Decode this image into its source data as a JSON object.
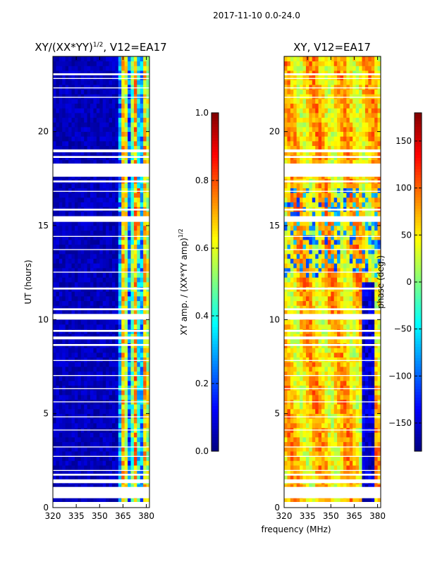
{
  "suptitle": "2017-11-10 0.0-24.0",
  "shared": {
    "xlabel": "frequency (MHz)",
    "ylabel": "UT (hours)"
  },
  "chart_data": [
    {
      "type": "heatmap",
      "title": "XY/(XX*YY)",
      "title_sup": "1/2",
      "title_suffix": ", V12=EA17",
      "xlim": [
        320,
        382
      ],
      "ylim": [
        0,
        24
      ],
      "xticks": [
        320,
        335,
        350,
        365,
        380
      ],
      "yticks": [
        0,
        5,
        10,
        15,
        20
      ],
      "value_description": "normalized XY amplitude: near 0 below ~362 MHz, ~0.3-0.8 in 362-382 MHz band",
      "colorbar": {
        "label": "XY amp. / (XX*YY amp)",
        "label_sup": "1/2",
        "range": [
          0.0,
          1.0
        ],
        "ticks": [
          "0.0",
          "0.2",
          "0.4",
          "0.6",
          "0.8",
          "1.0"
        ],
        "tick_values": [
          0.0,
          0.2,
          0.4,
          0.6,
          0.8,
          1.0
        ],
        "colormap": "jet"
      }
    },
    {
      "type": "heatmap",
      "title": "XY, V12=EA17",
      "xlim": [
        320,
        382
      ],
      "ylim": [
        0,
        24
      ],
      "xticks": [
        320,
        335,
        350,
        365,
        380
      ],
      "yticks": [
        0,
        5,
        10,
        15,
        20
      ],
      "value_description": "XY phase in degrees, mostly 0-100 deg; ~ -150 deg near 370-378 MHz",
      "colorbar": {
        "label": "phase (deg.)",
        "range": [
          -180,
          180
        ],
        "ticks": [
          "150",
          "100",
          "50",
          "0",
          "−50",
          "−100",
          "−150"
        ],
        "tick_values": [
          150,
          100,
          50,
          0,
          -50,
          -100,
          -150
        ],
        "colormap": "jet"
      }
    }
  ],
  "flagged_ut_ranges": [
    [
      0.0,
      0.3
    ],
    [
      0.5,
      1.1
    ],
    [
      1.3,
      1.5
    ],
    [
      1.7,
      1.8
    ],
    [
      1.95,
      2.0
    ],
    [
      2.7,
      2.75
    ],
    [
      3.2,
      3.25
    ],
    [
      4.1,
      4.15
    ],
    [
      4.8,
      4.85
    ],
    [
      5.6,
      5.65
    ],
    [
      6.3,
      6.35
    ],
    [
      7.0,
      7.05
    ],
    [
      7.8,
      7.85
    ],
    [
      8.6,
      8.7
    ],
    [
      8.95,
      9.1
    ],
    [
      9.35,
      9.45
    ],
    [
      10.0,
      10.3
    ],
    [
      10.5,
      10.6
    ],
    [
      11.6,
      11.7
    ],
    [
      12.5,
      12.55
    ],
    [
      13.7,
      13.75
    ],
    [
      14.4,
      14.45
    ],
    [
      15.2,
      15.5
    ],
    [
      15.8,
      15.9
    ],
    [
      16.8,
      16.85
    ],
    [
      17.3,
      17.4
    ],
    [
      17.6,
      18.3
    ],
    [
      18.6,
      18.7
    ],
    [
      18.9,
      19.05
    ],
    [
      21.8,
      21.85
    ],
    [
      22.3,
      22.35
    ],
    [
      22.8,
      22.85
    ],
    [
      23.0,
      23.1
    ]
  ]
}
